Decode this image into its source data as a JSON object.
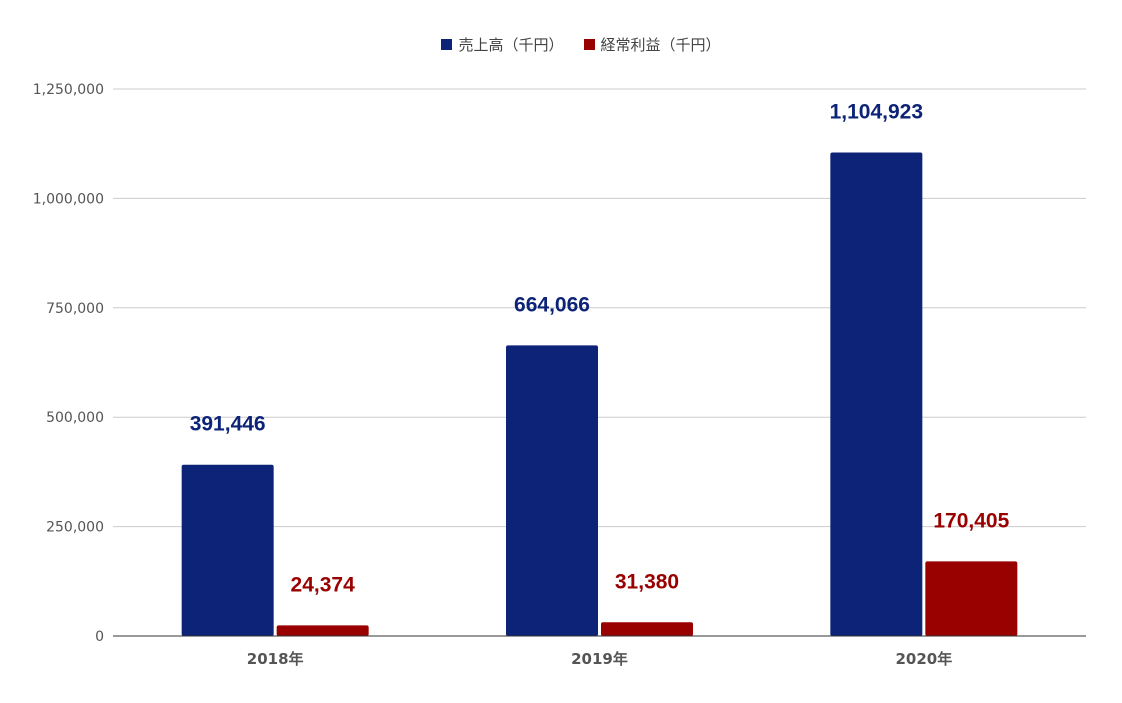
{
  "chart_data": {
    "type": "bar",
    "categories": [
      "2018年",
      "2019年",
      "2020年"
    ],
    "series": [
      {
        "name": "売上高（千円）",
        "values": [
          391446,
          664066,
          1104923
        ],
        "labels": [
          "391,446",
          "664,066",
          "1,104,923"
        ],
        "color": "#0d2377"
      },
      {
        "name": "経常利益（千円）",
        "values": [
          24374,
          31380,
          170405
        ],
        "labels": [
          "24,374",
          "31,380",
          "170,405"
        ],
        "color": "#990000"
      }
    ],
    "yticks": [
      "0",
      "250,000",
      "500,000",
      "750,000",
      "1,000,000",
      "1,250,000"
    ],
    "ytick_values": [
      0,
      250000,
      500000,
      750000,
      1000000,
      1250000
    ],
    "ylim": [
      0,
      1250000
    ],
    "legend_position": "top-center",
    "grid": true
  }
}
